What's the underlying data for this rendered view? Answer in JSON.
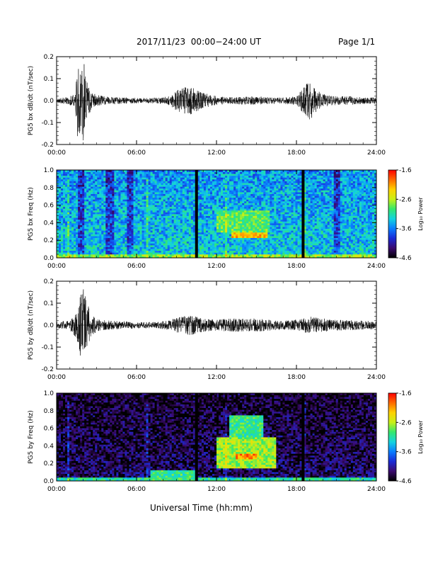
{
  "header": {
    "title": "2017/11/23  00:00−24:00 UT",
    "page": "Page 1/1"
  },
  "footer": {
    "xlabel": "Universal Time (hh:mm)"
  },
  "colors": {
    "background": "#ffffff",
    "trace": "#000000",
    "colormap": [
      "#000000",
      "#3b0a6e",
      "#1a2ad6",
      "#0a7dff",
      "#13d3df",
      "#34e86c",
      "#c8f016",
      "#ffd200",
      "#ff6a00",
      "#ff0000"
    ]
  },
  "chart_data": [
    {
      "type": "line",
      "ylabel": "PG5 bx dB/dt (nT/sec)",
      "xlim": [
        0,
        24
      ],
      "ylim": [
        -0.2,
        0.2
      ],
      "yticks": [
        "-0.2",
        "-0.1",
        "0.0",
        "0.1",
        "0.2"
      ],
      "xticks": [
        "00:00",
        "06:00",
        "12:00",
        "18:00",
        "24:00"
      ],
      "envelope": {
        "x": [
          0,
          0.5,
          1.0,
          1.4,
          1.6,
          1.8,
          2.0,
          2.2,
          2.6,
          3.0,
          4.0,
          5.0,
          6.0,
          7.0,
          8.0,
          8.5,
          9.0,
          9.5,
          10.0,
          10.5,
          11.0,
          12.0,
          13.0,
          14.0,
          15.0,
          16.0,
          17.0,
          18.0,
          18.5,
          19.0,
          19.5,
          20.0,
          21.0,
          22.0,
          23.0,
          24.0
        ],
        "amplitude": [
          0.012,
          0.015,
          0.02,
          0.03,
          0.2,
          0.15,
          0.2,
          0.1,
          0.04,
          0.025,
          0.018,
          0.015,
          0.012,
          0.012,
          0.015,
          0.025,
          0.045,
          0.06,
          0.065,
          0.05,
          0.035,
          0.02,
          0.015,
          0.018,
          0.02,
          0.015,
          0.015,
          0.02,
          0.06,
          0.09,
          0.05,
          0.03,
          0.02,
          0.02,
          0.015,
          0.015
        ]
      }
    },
    {
      "type": "heatmap",
      "ylabel": "PG5 bx Freq (Hz)",
      "xlim": [
        0,
        24
      ],
      "ylim": [
        0.0,
        1.0
      ],
      "yticks": [
        "0.0",
        "0.2",
        "0.4",
        "0.6",
        "0.8",
        "1.0"
      ],
      "xticks": [
        "00:00",
        "06:00",
        "12:00",
        "18:00",
        "24:00"
      ],
      "colorbar": {
        "label": "Log₁₀ Power",
        "range": [
          -4.6,
          -1.6
        ],
        "ticks": [
          "-1.6",
          "-2.6",
          "-3.6",
          "-4.6"
        ]
      },
      "base_level": -3.3,
      "data_gaps": [
        10.5,
        18.5
      ],
      "features": [
        {
          "t0": 13.2,
          "t1": 15.8,
          "f0": 0.22,
          "f1": 0.3,
          "level": -2.2
        },
        {
          "t0": 12.0,
          "t1": 16.0,
          "f0": 0.3,
          "f1": 0.55,
          "level": -2.9
        },
        {
          "t0": 0.0,
          "t1": 24.0,
          "f0": 0.0,
          "f1": 0.04,
          "level": -2.7
        }
      ],
      "quiet_bands": [
        1.8,
        4.0,
        5.5,
        21.0
      ]
    },
    {
      "type": "line",
      "ylabel": "PG5 by dB/dt (nT/sec)",
      "xlim": [
        0,
        24
      ],
      "ylim": [
        -0.2,
        0.2
      ],
      "yticks": [
        "-0.2",
        "-0.1",
        "0.0",
        "0.1",
        "0.2"
      ],
      "xticks": [
        "00:00",
        "06:00",
        "12:00",
        "18:00",
        "24:00"
      ],
      "envelope": {
        "x": [
          0,
          0.5,
          1.0,
          1.4,
          1.6,
          1.8,
          2.0,
          2.2,
          2.6,
          3.0,
          4.0,
          5.0,
          6.0,
          7.0,
          8.0,
          8.5,
          9.0,
          9.5,
          10.0,
          10.5,
          11.0,
          12.0,
          13.0,
          14.0,
          15.0,
          16.0,
          17.0,
          18.0,
          18.5,
          19.0,
          19.5,
          20.0,
          21.0,
          22.0,
          23.0,
          24.0
        ],
        "amplitude": [
          0.015,
          0.018,
          0.025,
          0.06,
          0.1,
          0.15,
          0.2,
          0.12,
          0.05,
          0.03,
          0.02,
          0.018,
          0.015,
          0.014,
          0.018,
          0.025,
          0.035,
          0.04,
          0.045,
          0.04,
          0.03,
          0.025,
          0.03,
          0.03,
          0.03,
          0.025,
          0.02,
          0.025,
          0.035,
          0.04,
          0.035,
          0.03,
          0.025,
          0.025,
          0.02,
          0.02
        ]
      }
    },
    {
      "type": "heatmap",
      "ylabel": "PG5 by Freq (Hz)",
      "xlim": [
        0,
        24
      ],
      "ylim": [
        0.0,
        1.0
      ],
      "yticks": [
        "0.0",
        "0.2",
        "0.4",
        "0.6",
        "0.8",
        "1.0"
      ],
      "xticks": [
        "00:00",
        "06:00",
        "12:00",
        "18:00",
        "24:00"
      ],
      "colorbar": {
        "label": "Log₁₀ Power",
        "range": [
          -4.6,
          -1.6
        ],
        "ticks": [
          "-1.6",
          "-2.6",
          "-3.6",
          "-4.6"
        ]
      },
      "base_level": -4.3,
      "data_gaps": [
        10.5,
        18.5
      ],
      "features": [
        {
          "t0": 13.5,
          "t1": 15.0,
          "f0": 0.24,
          "f1": 0.32,
          "level": -2.0
        },
        {
          "t0": 12.0,
          "t1": 16.5,
          "f0": 0.15,
          "f1": 0.5,
          "level": -2.7
        },
        {
          "t0": 13.0,
          "t1": 15.5,
          "f0": 0.5,
          "f1": 0.75,
          "level": -3.0
        },
        {
          "t0": 0.0,
          "t1": 24.0,
          "f0": 0.0,
          "f1": 0.05,
          "level": -3.1
        },
        {
          "t0": 7.0,
          "t1": 10.5,
          "f0": 0.0,
          "f1": 0.12,
          "level": -3.0
        }
      ],
      "quiet_bands": []
    }
  ]
}
